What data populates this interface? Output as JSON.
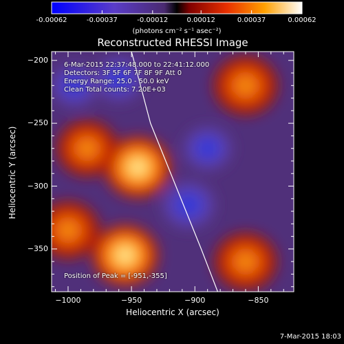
{
  "chart_data": {
    "type": "heatmap",
    "title": "Reconstructed RHESSI Image",
    "xlabel": "Heliocentric X (arcsec)",
    "ylabel": "Heliocentric Y (arcsec)",
    "x_ticks": [
      -1000,
      -950,
      -900,
      -850
    ],
    "y_ticks": [
      -200,
      -250,
      -300,
      -350
    ],
    "xlim": [
      -1013,
      -822
    ],
    "ylim": [
      -384,
      -193
    ],
    "colorbar": {
      "range": [
        -0.00062,
        0.00062
      ],
      "tick_labels": [
        "-0.00062",
        "-0.00037",
        "-0.00012",
        "0.00012",
        "0.00037",
        "0.00062"
      ],
      "unit_label": "(photons cm⁻² s⁻¹ asec⁻²)"
    },
    "annotations": {
      "time_range": "6-Mar-2015 22:37:48.000 to 22:41:12.000",
      "detectors": "Detectors: 3F 5F 6F 7F 8F 9F Att 0",
      "energy_range": "Energy Range: 25.0 - 50.0 keV",
      "clean_counts": "Clean     Total counts: 7.20E+03",
      "peak_position": "Position of Peak = [-951,-355]"
    },
    "limb_curve": [
      [
        -950,
        -193
      ],
      [
        -935,
        -250
      ],
      [
        -915,
        -300
      ],
      [
        -895,
        -350
      ],
      [
        -882,
        -384
      ]
    ],
    "bright_sources": [
      {
        "x": -945,
        "y": -285,
        "value": 0.00062
      },
      {
        "x": -955,
        "y": -355,
        "value": 0.0006
      },
      {
        "x": -860,
        "y": -220,
        "value": 0.0005
      },
      {
        "x": -985,
        "y": -270,
        "value": 0.0004
      },
      {
        "x": -1000,
        "y": -335,
        "value": 0.00045
      },
      {
        "x": -860,
        "y": -360,
        "value": 0.00045
      }
    ],
    "dark_sources": [
      {
        "x": -905,
        "y": -315,
        "value": -0.00062
      },
      {
        "x": -960,
        "y": -215,
        "value": -0.0005
      },
      {
        "x": -995,
        "y": -220,
        "value": -0.0004
      },
      {
        "x": -890,
        "y": -270,
        "value": -0.00045
      }
    ]
  },
  "footer": {
    "timestamp": "7-Mar-2015 18:03"
  },
  "colors": {
    "background": "#000000",
    "colorbar_low": "#0000ff",
    "colorbar_mid": "#000000",
    "colorbar_high": "#ffffff"
  }
}
